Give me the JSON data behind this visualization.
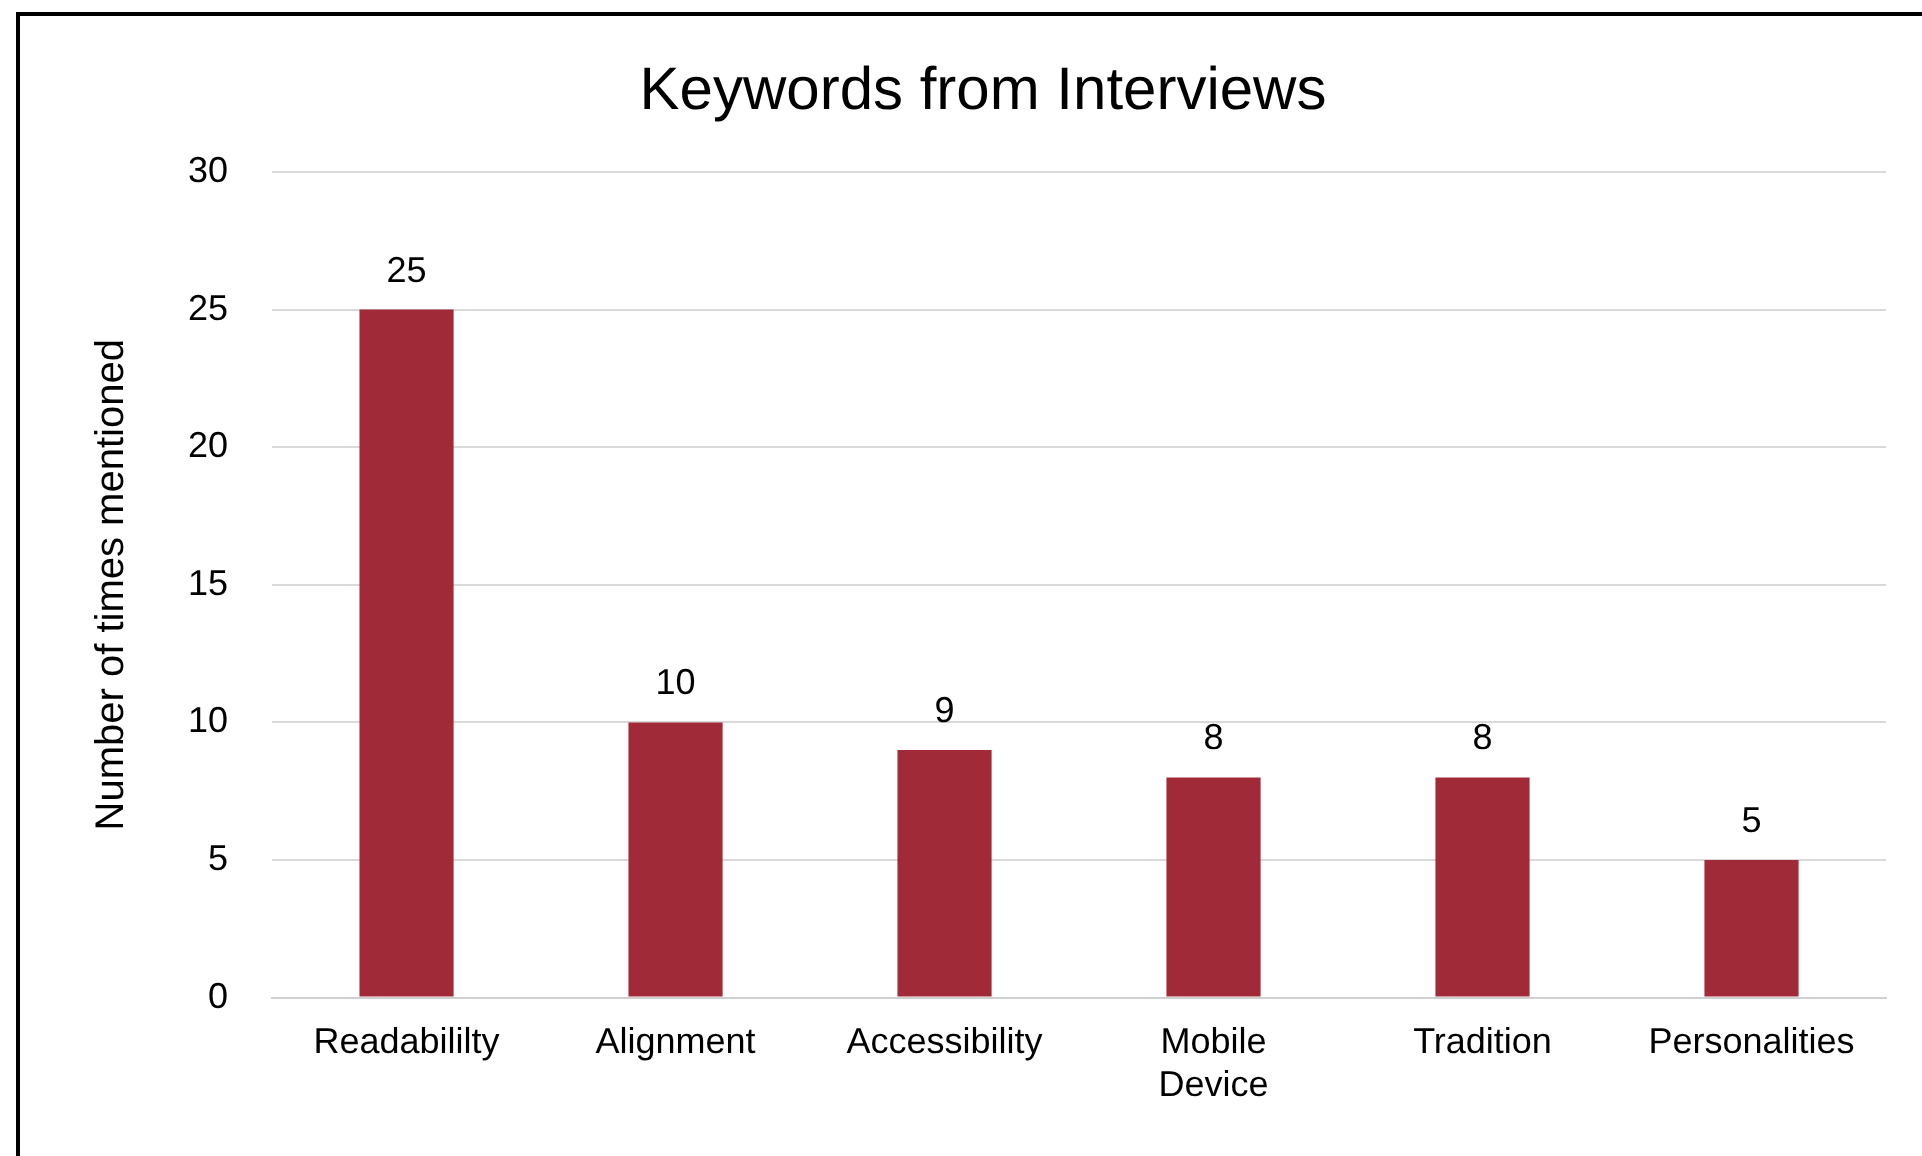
{
  "chart_data": {
    "type": "bar",
    "title": "Keywords from Interviews",
    "ylabel": "Number of times mentioned",
    "categories": [
      "Readabililty",
      "Alignment",
      "Accessibility",
      "Mobile Device",
      "Tradition",
      "Personalities"
    ],
    "values": [
      25,
      10,
      9,
      8,
      8,
      5
    ],
    "color": "#a12a38",
    "ylim": [
      0,
      30
    ],
    "yticks": [
      0,
      5,
      10,
      15,
      20,
      25,
      30
    ],
    "grid": "y",
    "data_labels": true,
    "legend": false
  }
}
